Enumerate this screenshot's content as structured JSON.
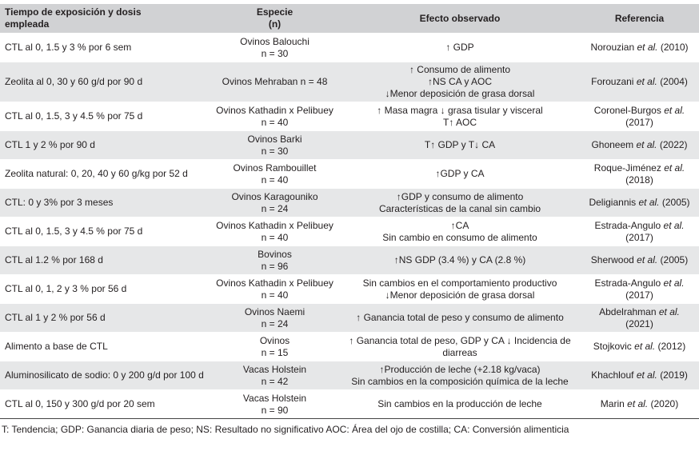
{
  "table": {
    "header": {
      "exposure": [
        "Tiempo de exposición y dosis",
        "empleada"
      ],
      "species": [
        "Especie",
        "(n)"
      ],
      "effect": [
        "Efecto observado"
      ],
      "reference": [
        "Referencia"
      ]
    },
    "rows": [
      {
        "exposure": [
          "CTL al 0, 1.5 y 3 % por 6 sem"
        ],
        "species": [
          "Ovinos Balouchi",
          "n = 30"
        ],
        "effect": [
          "↑ GDP"
        ],
        "reference": {
          "author": "Norouzian",
          "etal": "et al.",
          "year": "(2010)"
        }
      },
      {
        "exposure": [
          "Zeolita al 0, 30 y 60 g/d por 90 d"
        ],
        "species": [
          "Ovinos Mehraban n = 48"
        ],
        "effect": [
          "↑ Consumo de alimento",
          "↑NS CA y AOC",
          "↓Menor deposición de grasa dorsal"
        ],
        "reference": {
          "author": "Forouzani",
          "etal": "et al.",
          "year": "(2004)"
        }
      },
      {
        "exposure": [
          "CTL al 0, 1.5, 3 y 4.5 % por 75 d"
        ],
        "species": [
          "Ovinos Kathadin x Pelibuey",
          "n = 40"
        ],
        "effect": [
          "↑ Masa magra ↓ grasa tisular y visceral",
          "T↑ AOC"
        ],
        "reference": {
          "author": "Coronel-Burgos",
          "etal": "et al.",
          "year": "(2017)"
        }
      },
      {
        "exposure": [
          "CTL 1 y 2 % por 90 d"
        ],
        "species": [
          "Ovinos Barki",
          "n = 30"
        ],
        "effect": [
          "T↑ GDP y T↓ CA"
        ],
        "reference": {
          "author": "Ghoneem",
          "etal": "et al.",
          "year": "(2022)"
        }
      },
      {
        "exposure": [
          "Zeolita natural: 0, 20, 40 y 60 g/kg por 52 d"
        ],
        "species": [
          "Ovinos Rambouillet",
          "n = 40"
        ],
        "effect": [
          "↑GDP y CA"
        ],
        "reference": {
          "author": "Roque-Jiménez",
          "etal": "et al.",
          "year": "(2018)"
        }
      },
      {
        "exposure": [
          "CTL: 0 y 3% por 3 meses"
        ],
        "species": [
          "Ovinos Karagouniko",
          "n = 24"
        ],
        "effect": [
          "↑GDP y consumo de alimento",
          "Características de la canal sin cambio"
        ],
        "reference": {
          "author": "Deligiannis",
          "etal": "et al.",
          "year": "(2005)"
        }
      },
      {
        "exposure": [
          "CTL al 0, 1.5, 3 y 4.5 % por 75 d"
        ],
        "species": [
          "Ovinos Kathadin x Pelibuey",
          "n = 40"
        ],
        "effect": [
          "↑CA",
          "Sin cambio en consumo de alimento"
        ],
        "reference": {
          "author": "Estrada-Angulo",
          "etal": "et al.",
          "year": "(2017)"
        }
      },
      {
        "exposure": [
          "CTL al 1.2 % por 168 d"
        ],
        "species": [
          "Bovinos",
          "n = 96"
        ],
        "effect": [
          "↑NS GDP (3.4 %) y CA (2.8 %)"
        ],
        "reference": {
          "author": "Sherwood",
          "etal": "et al.",
          "year": "(2005)"
        }
      },
      {
        "exposure": [
          "CTL al 0, 1, 2 y 3 % por 56 d"
        ],
        "species": [
          "Ovinos Kathadin x Pelibuey",
          "n = 40"
        ],
        "effect": [
          "Sin cambios en el comportamiento productivo",
          "↓Menor deposición de grasa dorsal"
        ],
        "reference": {
          "author": "Estrada-Angulo",
          "etal": "et al.",
          "year": "(2017)"
        }
      },
      {
        "exposure": [
          "CTL al 1 y 2 % por 56 d"
        ],
        "species": [
          "Ovinos Naemi",
          "n = 24"
        ],
        "effect": [
          "↑ Ganancia total de peso y consumo de alimento"
        ],
        "reference": {
          "author": "Abdelrahman",
          "etal": "et al.",
          "year": "(2021)"
        }
      },
      {
        "exposure": [
          "Alimento a base de CTL"
        ],
        "species": [
          "Ovinos",
          "n = 15"
        ],
        "effect": [
          "↑ Ganancia total de peso, GDP y CA ↓ Incidencia de diarreas"
        ],
        "reference": {
          "author": "Stojkovic",
          "etal": "et al.",
          "year": "(2012)"
        }
      },
      {
        "exposure": [
          "Aluminosilicato de sodio: 0 y 200 g/d por 100 d"
        ],
        "species": [
          "Vacas Holstein",
          "n = 42"
        ],
        "effect": [
          "↑Producción de leche (+2.18 kg/vaca)",
          "Sin cambios en la composición química de la leche"
        ],
        "reference": {
          "author": "Khachlouf",
          "etal": "et al.",
          "year": "(2019)"
        }
      },
      {
        "exposure": [
          "CTL al 0, 150 y 300 g/d por 20 sem"
        ],
        "species": [
          "Vacas Holstein",
          "n = 90"
        ],
        "effect": [
          "Sin cambios en la producción de leche"
        ],
        "reference": {
          "author": "Marin",
          "etal": "et al.",
          "year": "(2020)"
        }
      }
    ]
  },
  "footnote": "T: Tendencia; GDP: Ganancia diaria de peso; NS: Resultado no significativo AOC: Área del ojo de costilla; CA: Conversión alimenticia"
}
